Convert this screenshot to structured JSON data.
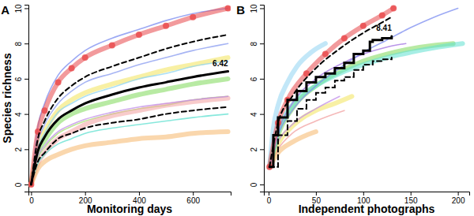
{
  "chart_data": [
    {
      "type": "line",
      "title": "A",
      "x_label": "Monitoring days",
      "y_label": "Species richness",
      "xlim": [
        -10,
        740
      ],
      "ylim": [
        -0.4,
        10.2
      ],
      "xticks": [
        0,
        200,
        400,
        600
      ],
      "yticks": [
        0,
        2,
        4,
        6,
        8,
        10
      ],
      "x": [
        0,
        25,
        50,
        100,
        150,
        200,
        300,
        400,
        500,
        600,
        730
      ],
      "series": [
        {
          "color": "#f2e35a",
          "line_style": "thick",
          "values": [
            0,
            2.2,
            3.0,
            4.2,
            4.8,
            5.2,
            5.7,
            6.1,
            6.5,
            6.8,
            7.2
          ]
        },
        {
          "color": "#7ed957",
          "line_style": "thick",
          "values": [
            0,
            1.8,
            2.5,
            3.5,
            4.0,
            4.3,
            4.7,
            5.1,
            5.4,
            5.7,
            6.0
          ]
        },
        {
          "color": "#a8e070",
          "line_style": "solid",
          "values": [
            0,
            1.5,
            2.1,
            2.9,
            3.3,
            3.6,
            4.0,
            4.3,
            4.5,
            4.8,
            5.0
          ]
        },
        {
          "color": "#f2a0a0",
          "line_style": "thick",
          "values": [
            0,
            1.2,
            1.8,
            2.6,
            3.0,
            3.4,
            3.9,
            4.2,
            4.5,
            4.7,
            4.9
          ]
        },
        {
          "color": "#f5b66a",
          "line_style": "thick",
          "values": [
            0,
            0.9,
            1.3,
            1.7,
            2.0,
            2.2,
            2.4,
            2.6,
            2.7,
            2.9,
            3.0
          ]
        },
        {
          "color": "#5fe0d0",
          "line_style": "solid",
          "values": [
            0,
            1.2,
            1.7,
            2.3,
            2.6,
            2.9,
            3.2,
            3.4,
            3.6,
            3.8,
            4.0
          ]
        },
        {
          "color": "#c08ee8",
          "line_style": "solid",
          "values": [
            0,
            1.6,
            2.2,
            3.0,
            3.4,
            3.7,
            4.1,
            4.4,
            4.6,
            4.8,
            5.0
          ]
        },
        {
          "color": "#8fd4f2",
          "line_style": "solid",
          "values": [
            0,
            2.1,
            2.9,
            4.1,
            4.6,
            5.0,
            5.5,
            6.0,
            6.3,
            6.7,
            7.0
          ]
        },
        {
          "color": "#8a9cf0",
          "line_style": "solid",
          "values": [
            0,
            2.4,
            3.4,
            4.6,
            5.3,
            5.8,
            6.3,
            6.8,
            7.2,
            7.6,
            8.0
          ]
        },
        {
          "color": "#7b8cf0",
          "line_style": "solid",
          "values": [
            0,
            3.3,
            4.6,
            6.2,
            7.0,
            7.6,
            8.3,
            8.8,
            9.3,
            9.7,
            10.0
          ]
        },
        {
          "color": "#e8474a",
          "line_style": "thick",
          "marker": "circle",
          "values": [
            0,
            3.0,
            4.2,
            5.8,
            6.6,
            7.2,
            7.9,
            8.5,
            9.0,
            9.5,
            10.0
          ]
        },
        {
          "color": "#000000",
          "line_style": "dashed",
          "values": [
            0,
            2.6,
            3.6,
            4.9,
            5.6,
            6.1,
            6.7,
            7.2,
            7.7,
            8.1,
            8.5
          ]
        },
        {
          "color": "#000000",
          "line_style": "dashed",
          "values": [
            0,
            1.3,
            1.8,
            2.6,
            2.9,
            3.2,
            3.5,
            3.7,
            4.0,
            4.2,
            4.4
          ]
        },
        {
          "color": "#000000",
          "line_style": "bold",
          "values": [
            0,
            1.9,
            2.7,
            3.7,
            4.2,
            4.6,
            5.1,
            5.5,
            5.8,
            6.1,
            6.42
          ]
        }
      ],
      "annotations": [
        {
          "text": "6.42",
          "x": 730,
          "y": 6.42
        }
      ]
    },
    {
      "type": "line",
      "title": "B",
      "x_label": "Independent photographs",
      "xlim": [
        -5,
        212
      ],
      "ylim": [
        -0.4,
        10.2
      ],
      "xticks": [
        0,
        50,
        100,
        150,
        200
      ],
      "yticks": [
        0,
        2,
        4,
        6,
        8,
        10
      ],
      "series": [
        {
          "color": "#f5b66a",
          "line_style": "thick",
          "x": [
            1,
            10,
            25,
            40,
            50
          ],
          "values": [
            1,
            1.8,
            2.4,
            2.8,
            3.0
          ]
        },
        {
          "color": "#f2e35a",
          "line_style": "thick",
          "x": [
            1,
            10,
            25,
            50,
            70,
            88
          ],
          "values": [
            1,
            2.3,
            3.3,
            4.2,
            4.6,
            5.0
          ]
        },
        {
          "color": "#c08ee8",
          "line_style": "solid",
          "x": [
            1,
            10,
            25,
            50,
            75
          ],
          "values": [
            1,
            2.4,
            3.4,
            4.3,
            5.0
          ]
        },
        {
          "color": "#f2a0a0",
          "line_style": "solid",
          "x": [
            1,
            10,
            25,
            50,
            80
          ],
          "values": [
            1,
            2.0,
            2.9,
            3.6,
            4.2
          ]
        },
        {
          "color": "#7ed957",
          "line_style": "thick",
          "x": [
            1,
            10,
            25,
            50,
            75,
            100,
            125,
            150,
            175,
            195
          ],
          "values": [
            1,
            2.8,
            4.3,
            5.6,
            6.4,
            7.0,
            7.4,
            7.7,
            7.9,
            8.0
          ]
        },
        {
          "color": "#5fe0d0",
          "line_style": "thick",
          "x": [
            1,
            10,
            25,
            50,
            75,
            100,
            125,
            150,
            180,
            205
          ],
          "values": [
            1,
            3.0,
            4.5,
            5.6,
            6.3,
            6.8,
            7.2,
            7.5,
            7.8,
            8.0
          ]
        },
        {
          "color": "#a070e0",
          "line_style": "solid",
          "x": [
            1,
            10,
            25,
            50,
            75,
            100,
            125,
            145
          ],
          "values": [
            1,
            3.0,
            4.6,
            6.0,
            6.8,
            7.4,
            7.8,
            8.0
          ]
        },
        {
          "color": "#8fd4f2",
          "line_style": "thick",
          "x": [
            1,
            5,
            10,
            20,
            30,
            45,
            60
          ],
          "values": [
            1,
            3.2,
            4.5,
            5.8,
            6.7,
            7.5,
            8.0
          ]
        },
        {
          "color": "#7b8cf0",
          "line_style": "solid",
          "x": [
            1,
            10,
            25,
            50,
            75,
            100,
            125,
            150,
            175,
            200
          ],
          "values": [
            1,
            2.8,
            4.2,
            5.6,
            6.6,
            7.5,
            8.2,
            8.9,
            9.5,
            10.0
          ]
        },
        {
          "color": "#e8474a",
          "line_style": "thick",
          "marker": "circle",
          "x": [
            1,
            10,
            20,
            40,
            60,
            80,
            100,
            120,
            132
          ],
          "values": [
            1,
            3.5,
            4.8,
            6.3,
            7.4,
            8.3,
            9.0,
            9.6,
            10.0
          ]
        },
        {
          "color": "#000000",
          "line_style": "dashed",
          "x": [
            1,
            10,
            25,
            50,
            75,
            100,
            120,
            130
          ],
          "values": [
            1,
            3.5,
            5.0,
            6.6,
            7.7,
            8.6,
            9.2,
            9.5
          ]
        },
        {
          "color": "#000000",
          "line_style": "dashed-step",
          "x": [
            1,
            10,
            20,
            30,
            40,
            50,
            60,
            70,
            80,
            90,
            100,
            110,
            120,
            130
          ],
          "values": [
            1,
            2.8,
            3.6,
            4.3,
            4.8,
            5.2,
            5.5,
            5.9,
            6.1,
            6.5,
            6.8,
            7.0,
            7.1,
            7.2
          ]
        },
        {
          "color": "#000000",
          "line_style": "bold-step",
          "x": [
            1,
            5,
            10,
            20,
            30,
            40,
            50,
            60,
            70,
            80,
            90,
            100,
            107,
            110,
            120,
            130
          ],
          "values": [
            1,
            2.8,
            3.8,
            4.8,
            5.3,
            5.8,
            6.1,
            6.3,
            6.6,
            6.9,
            7.4,
            7.6,
            8.1,
            8.2,
            8.3,
            8.41
          ]
        }
      ],
      "annotations": [
        {
          "text": "8.41",
          "x": 130,
          "y": 8.41
        }
      ]
    }
  ]
}
